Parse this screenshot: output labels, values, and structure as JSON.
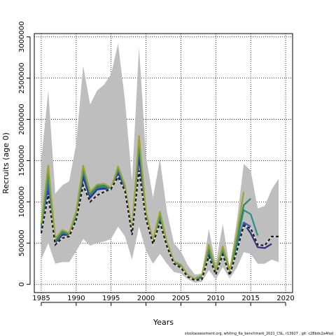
{
  "chart_data": {
    "type": "line",
    "title": "",
    "xlabel": "Years",
    "ylabel": "Recruits (age 0)",
    "xlim": [
      1984,
      2021
    ],
    "ylim": [
      -100000,
      3040000
    ],
    "xticks": [
      1985,
      1990,
      1995,
      2000,
      2005,
      2010,
      2015,
      2020
    ],
    "yticks": [
      0,
      500000,
      1000000,
      1500000,
      2000000,
      2500000,
      3000000
    ],
    "ytick_labels": [
      "0",
      "500000",
      "1000000",
      "1500000",
      "2000000",
      "2500000",
      "3000000"
    ],
    "grid": true,
    "grid_style": "dotted",
    "band": {
      "color": "#bebebe",
      "x": [
        1985,
        1986,
        1987,
        1988,
        1989,
        1990,
        1991,
        1992,
        1993,
        1994,
        1995,
        1996,
        1997,
        1998,
        1999,
        2000,
        2001,
        2002,
        2003,
        2004,
        2005,
        2006,
        2007,
        2008,
        2009,
        2010,
        2011,
        2012,
        2013,
        2014,
        2015,
        2016,
        2017,
        2018,
        2019
      ],
      "upper": [
        1500000,
        2350000,
        1100000,
        1200000,
        1250000,
        1700000,
        2650000,
        2180000,
        2350000,
        2420000,
        2550000,
        2920000,
        2220000,
        1250000,
        2880000,
        1550000,
        1050000,
        1520000,
        880000,
        500000,
        400000,
        230000,
        120000,
        130000,
        670000,
        250000,
        730000,
        200000,
        760000,
        1460000,
        1380000,
        920000,
        950000,
        1150000,
        1280000
      ],
      "lower": [
        300000,
        500000,
        250000,
        270000,
        270000,
        400000,
        550000,
        470000,
        500000,
        520000,
        550000,
        700000,
        580000,
        300000,
        700000,
        410000,
        250000,
        370000,
        250000,
        150000,
        130000,
        60000,
        20000,
        30000,
        170000,
        60000,
        210000,
        70000,
        200000,
        390000,
        370000,
        250000,
        250000,
        300000,
        270000
      ]
    },
    "series": [
      {
        "color": "#1a1a1a",
        "dashed": true,
        "x": [
          1985,
          1986,
          1987,
          1988,
          1989,
          1990,
          1991,
          1992,
          1993,
          1994,
          1995,
          1996,
          1997,
          1998,
          1999,
          2000,
          2001,
          2002,
          2003,
          2004,
          2005,
          2006,
          2007,
          2008,
          2009,
          2010,
          2011,
          2012,
          2013,
          2014,
          2015,
          2016,
          2017,
          2018,
          2019
        ],
        "values": [
          620000,
          1080000,
          480000,
          560000,
          580000,
          780000,
          1200000,
          1000000,
          1080000,
          1120000,
          1160000,
          1300000,
          1130000,
          600000,
          1380000,
          790000,
          490000,
          750000,
          460000,
          250000,
          200000,
          90000,
          50000,
          60000,
          340000,
          120000,
          360000,
          110000,
          400000,
          710000,
          680000,
          480000,
          470000,
          580000,
          580000
        ]
      },
      {
        "color": "#2b2b8c",
        "dashed": false,
        "x": [
          1985,
          1986,
          1987,
          1988,
          1989,
          1990,
          1991,
          1992,
          1993,
          1994,
          1995,
          1996,
          1997,
          1998,
          1999,
          2000,
          2001,
          2002,
          2003,
          2004,
          2005,
          2006,
          2007,
          2008,
          2009,
          2010,
          2011,
          2012,
          2013,
          2014,
          2015,
          2016,
          2017,
          2018
        ],
        "values": [
          650000,
          1150000,
          500000,
          600000,
          600000,
          810000,
          1300000,
          1050000,
          1150000,
          1160000,
          1150000,
          1350000,
          1150000,
          610000,
          1550000,
          800000,
          500000,
          780000,
          470000,
          250000,
          210000,
          90000,
          50000,
          70000,
          360000,
          130000,
          380000,
          120000,
          410000,
          740000,
          620000,
          450000,
          440000,
          490000
        ]
      },
      {
        "color": "#3b5bb5",
        "dashed": false,
        "x": [
          1985,
          1986,
          1987,
          1988,
          1989,
          1990,
          1991,
          1992,
          1993,
          1994,
          1995,
          1996,
          1997,
          1998,
          1999,
          2000,
          2001,
          2002,
          2003,
          2004,
          2005,
          2006,
          2007,
          2008,
          2009,
          2010,
          2011,
          2012,
          2013,
          2014,
          2015
        ],
        "values": [
          680000,
          1220000,
          510000,
          620000,
          610000,
          830000,
          1350000,
          1080000,
          1170000,
          1180000,
          1150000,
          1380000,
          1170000,
          620000,
          1650000,
          820000,
          510000,
          810000,
          480000,
          260000,
          220000,
          100000,
          55000,
          80000,
          400000,
          150000,
          410000,
          140000,
          470000,
          750000,
          700000
        ]
      },
      {
        "color": "#2e8b8b",
        "dashed": false,
        "x": [
          1985,
          1986,
          1987,
          1988,
          1989,
          1990,
          1991,
          1992,
          1993,
          1994,
          1995,
          1996,
          1997,
          1998,
          1999,
          2000,
          2001,
          2002,
          2003,
          2004,
          2005,
          2006,
          2007,
          2008,
          2009,
          2010,
          2011,
          2012,
          2013,
          2014,
          2015,
          2016
        ],
        "values": [
          700000,
          1320000,
          520000,
          630000,
          600000,
          850000,
          1380000,
          1090000,
          1180000,
          1190000,
          1150000,
          1400000,
          1180000,
          630000,
          1700000,
          840000,
          520000,
          830000,
          490000,
          270000,
          220000,
          100000,
          60000,
          90000,
          420000,
          160000,
          420000,
          150000,
          500000,
          900000,
          850000,
          590000
        ]
      },
      {
        "color": "#2e8b57",
        "dashed": false,
        "x": [
          1985,
          1986,
          1987,
          1988,
          1989,
          1990,
          1991,
          1992,
          1993,
          1994,
          1995,
          1996,
          1997,
          1998,
          1999,
          2000,
          2001,
          2002,
          2003,
          2004,
          2005,
          2006,
          2007,
          2008,
          2009,
          2010,
          2011,
          2012,
          2013,
          2014,
          2015
        ],
        "values": [
          720000,
          1400000,
          530000,
          640000,
          610000,
          860000,
          1420000,
          1100000,
          1190000,
          1200000,
          1160000,
          1420000,
          1190000,
          640000,
          1760000,
          860000,
          520000,
          860000,
          500000,
          270000,
          230000,
          110000,
          60000,
          100000,
          450000,
          170000,
          440000,
          160000,
          540000,
          960000,
          1040000
        ]
      },
      {
        "color": "#9aa531",
        "dashed": false,
        "x": [
          1985,
          1986,
          1987,
          1988,
          1989,
          1990,
          1991,
          1992,
          1993,
          1994,
          1995,
          1996,
          1997,
          1998,
          1999,
          2000,
          2001,
          2002,
          2003,
          2004,
          2005,
          2006,
          2007,
          2008,
          2009,
          2010,
          2011,
          2012,
          2013,
          2014
        ],
        "values": [
          740000,
          1440000,
          550000,
          660000,
          620000,
          880000,
          1440000,
          1120000,
          1210000,
          1220000,
          1170000,
          1430000,
          1200000,
          650000,
          1800000,
          880000,
          530000,
          880000,
          510000,
          280000,
          240000,
          110000,
          70000,
          110000,
          480000,
          180000,
          460000,
          170000,
          600000,
          1120000
        ]
      }
    ],
    "footnote": "stockassessment.org, whiting_6a_benchmark_2021_CSL, r13927 , git: c28bdc2a4fad"
  }
}
